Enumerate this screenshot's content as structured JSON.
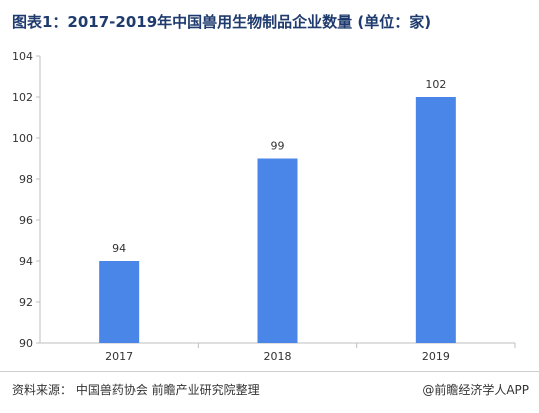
{
  "page": {
    "title": "图表1：2017-2019年中国兽用生物制品企业数量 (单位：家)",
    "source": "资料来源：  中国兽药协会 前瞻产业研究院整理",
    "credit": "@前瞻经济学人APP"
  },
  "colors": {
    "title": "#1f3b6e",
    "bar": "#4a86e8",
    "axis": "#bfbfbf",
    "text": "#333333"
  },
  "chart_data": {
    "type": "bar",
    "title": "图表1：2017-2019年中国兽用生物制品企业数量 (单位：家)",
    "categories": [
      "2017",
      "2018",
      "2019"
    ],
    "values": [
      94,
      99,
      102
    ],
    "data_labels": [
      "94",
      "99",
      "102"
    ],
    "ylim": [
      90,
      104
    ],
    "yticks": [
      90,
      92,
      94,
      96,
      98,
      100,
      102,
      104
    ],
    "grid": false,
    "legend": "none"
  }
}
